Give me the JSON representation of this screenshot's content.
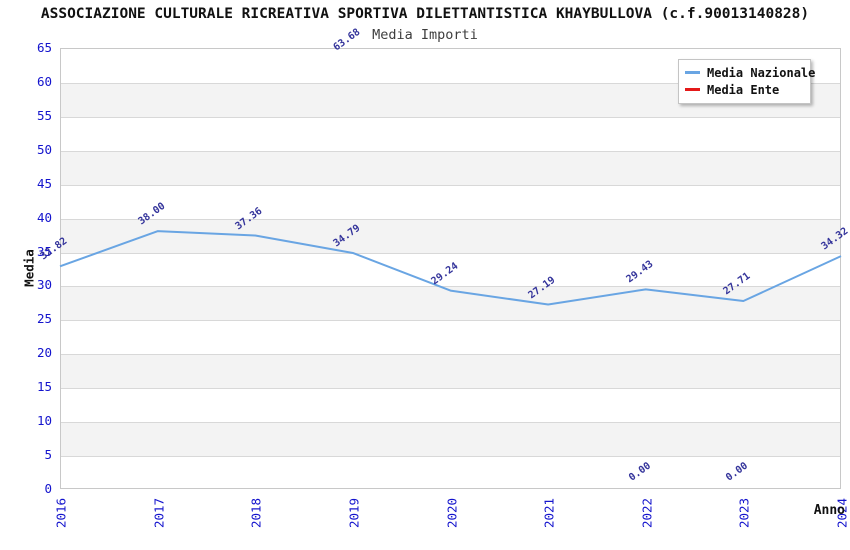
{
  "page": {
    "background": "#ffffff"
  },
  "chart_data": {
    "type": "line",
    "title": "ASSOCIAZIONE CULTURALE RICREATIVA SPORTIVA DILETTANTISTICA KHAYBULLOVA (c.f.90013140828)",
    "subtitle": "Media Importi",
    "xlabel": "Anno",
    "ylabel": "Media",
    "categories": [
      "2016",
      "2017",
      "2018",
      "2019",
      "2020",
      "2021",
      "2022",
      "2023",
      "2024"
    ],
    "series": [
      {
        "name": "Media Nazionale",
        "color": "#69a5e3",
        "line_visible": true,
        "values": [
          32.82,
          38.0,
          37.36,
          34.79,
          29.24,
          27.19,
          29.43,
          27.71,
          34.32
        ]
      },
      {
        "name": "Media Ente",
        "color": "#e41919",
        "line_visible": false,
        "values": [
          null,
          null,
          null,
          63.68,
          null,
          null,
          0.0,
          0.0,
          null
        ]
      }
    ],
    "ylim": [
      0,
      65
    ],
    "ytick_step": 5,
    "value_label_decimals": 2,
    "value_label_color": "#34349b",
    "tick_label_color": "#1414cd",
    "band_color": "#f3f3f3",
    "gridline_color": "#d8d8d8",
    "legend_position": "top-right",
    "grid": "horizontal-bands"
  }
}
